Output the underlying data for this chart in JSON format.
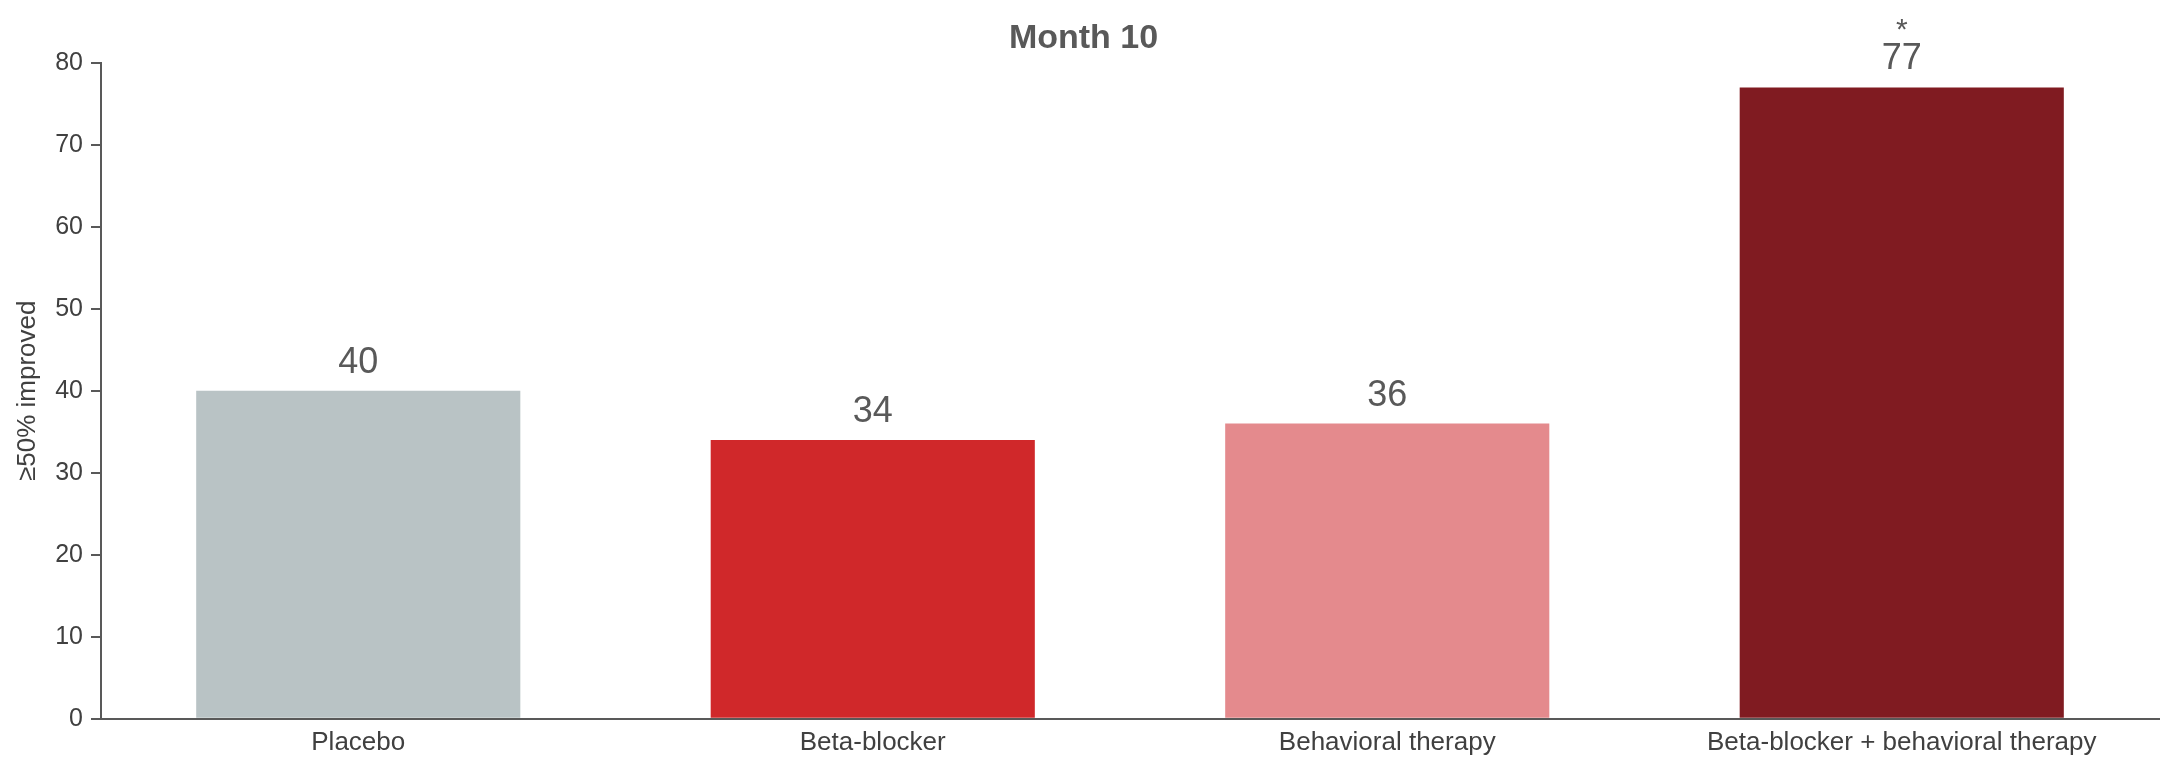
{
  "chart_data": {
    "type": "bar",
    "title": "Month 10",
    "ylabel": "≥50% improved",
    "categories": [
      "Placebo",
      "Beta-blocker",
      "Behavioral therapy",
      "Beta-blocker + behavioral therapy"
    ],
    "values": [
      40,
      34,
      36,
      77
    ],
    "colors": [
      "#b9c3c5",
      "#d0282a",
      "#e48a8d",
      "#801b21"
    ],
    "ylim": [
      0,
      80
    ],
    "yticks": [
      0,
      10,
      20,
      30,
      40,
      50,
      60,
      70,
      80
    ],
    "grid": false,
    "data_labels": true,
    "annotations": [
      {
        "text": "*",
        "x": "Beta-blocker + behavioral therapy",
        "y": 77
      }
    ]
  }
}
